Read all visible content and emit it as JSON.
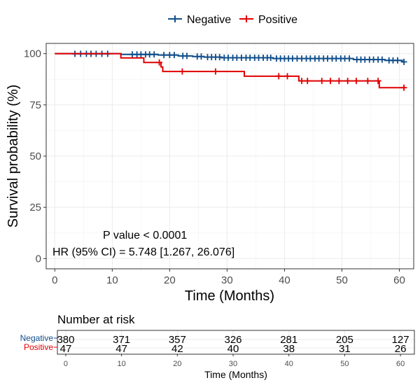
{
  "chart_data": {
    "type": "line",
    "subtype": "kaplan-meier",
    "legend": {
      "placement": "top",
      "entries": [
        {
          "name": "Negative",
          "color": "#0f4d8a"
        },
        {
          "name": "Positive",
          "color": "#e00000"
        }
      ]
    },
    "xlabel": "Time (Months)",
    "ylabel": "Survival probability (%)",
    "xlim": [
      -1.5,
      62.5
    ],
    "ylim": [
      -5,
      105
    ],
    "xticks": [
      0,
      10,
      20,
      30,
      40,
      50,
      60
    ],
    "yticks": [
      0,
      25,
      50,
      75,
      100
    ],
    "grid": true,
    "series": [
      {
        "name": "Negative",
        "color": "#0f4d8a",
        "steps": [
          [
            0,
            100
          ],
          [
            11.5,
            99.6
          ],
          [
            18,
            99.3
          ],
          [
            21.5,
            98.9
          ],
          [
            24,
            98.6
          ],
          [
            26,
            98.3
          ],
          [
            29,
            98.0
          ],
          [
            38,
            97.6
          ],
          [
            52,
            97.1
          ],
          [
            57.5,
            96.7
          ],
          [
            60.5,
            96.0
          ],
          [
            61,
            96.0
          ]
        ],
        "censored": [
          [
            3.5,
            99.9
          ],
          [
            4.5,
            99.9
          ],
          [
            5.5,
            99.9
          ],
          [
            6.3,
            99.9
          ],
          [
            7.2,
            99.9
          ],
          [
            8.2,
            99.9
          ],
          [
            9.2,
            99.9
          ],
          [
            13.5,
            99.6
          ],
          [
            14.3,
            99.6
          ],
          [
            15,
            99.6
          ],
          [
            15.8,
            99.6
          ],
          [
            16.5,
            99.6
          ],
          [
            17.3,
            99.6
          ],
          [
            19,
            99.3
          ],
          [
            20,
            99.3
          ],
          [
            20.8,
            99.3
          ],
          [
            22.3,
            98.9
          ],
          [
            23,
            98.9
          ],
          [
            24.8,
            98.6
          ],
          [
            25.5,
            98.6
          ],
          [
            26.6,
            98.3
          ],
          [
            27.3,
            98.3
          ],
          [
            28,
            98.3
          ],
          [
            28.7,
            98.3
          ],
          [
            29.5,
            98.0
          ],
          [
            30.2,
            98.0
          ],
          [
            31,
            98.0
          ],
          [
            31.7,
            98.0
          ],
          [
            32.5,
            98.0
          ],
          [
            33.3,
            98.0
          ],
          [
            34,
            98.0
          ],
          [
            34.8,
            98.0
          ],
          [
            35.5,
            98.0
          ],
          [
            36.3,
            98.0
          ],
          [
            37,
            98.0
          ],
          [
            37.6,
            98.0
          ],
          [
            38.6,
            97.6
          ],
          [
            39.3,
            97.6
          ],
          [
            40,
            97.6
          ],
          [
            40.7,
            97.6
          ],
          [
            41.4,
            97.6
          ],
          [
            42.2,
            97.6
          ],
          [
            43,
            97.6
          ],
          [
            43.8,
            97.6
          ],
          [
            44.5,
            97.6
          ],
          [
            45.3,
            97.6
          ],
          [
            46,
            97.6
          ],
          [
            46.8,
            97.6
          ],
          [
            47.5,
            97.6
          ],
          [
            48.3,
            97.6
          ],
          [
            49,
            97.6
          ],
          [
            49.8,
            97.6
          ],
          [
            50.5,
            97.6
          ],
          [
            51.3,
            97.6
          ],
          [
            52.6,
            97.1
          ],
          [
            53.3,
            97.1
          ],
          [
            54,
            97.1
          ],
          [
            54.8,
            97.1
          ],
          [
            55.5,
            97.1
          ],
          [
            56.3,
            97.1
          ],
          [
            57,
            97.1
          ],
          [
            58.2,
            96.7
          ],
          [
            58.9,
            96.7
          ],
          [
            59.7,
            96.7
          ],
          [
            60.8,
            96.0
          ]
        ]
      },
      {
        "name": "Positive",
        "color": "#e00000",
        "steps": [
          [
            0,
            100
          ],
          [
            11.5,
            97.9
          ],
          [
            15.5,
            95.7
          ],
          [
            18.5,
            93.5
          ],
          [
            18.8,
            91.3
          ],
          [
            33,
            89.0
          ],
          [
            42.5,
            86.7
          ],
          [
            56.5,
            83.4
          ],
          [
            61,
            83.4
          ]
        ],
        "censored": [
          [
            18.2,
            95.7
          ],
          [
            22.2,
            91.3
          ],
          [
            28,
            91.3
          ],
          [
            39,
            89.0
          ],
          [
            40.5,
            89.0
          ],
          [
            43,
            86.7
          ],
          [
            44,
            86.7
          ],
          [
            46.5,
            86.7
          ],
          [
            48,
            86.7
          ],
          [
            49.5,
            86.7
          ],
          [
            51,
            86.7
          ],
          [
            52.5,
            86.7
          ],
          [
            54.5,
            86.7
          ],
          [
            56.3,
            86.7
          ],
          [
            60.8,
            83.4
          ]
        ]
      }
    ],
    "annotations": [
      "P value < 0.0001",
      "HR (95% CI) = 5.748 [1.267, 26.076]"
    ]
  },
  "risk_table": {
    "title": "Number at risk",
    "xlabel": "Time (Months)",
    "times": [
      0,
      10,
      20,
      30,
      40,
      50,
      60
    ],
    "rows": [
      {
        "name": "Negative",
        "color": "#0f4d8a",
        "counts": [
          380,
          371,
          357,
          326,
          281,
          205,
          127
        ]
      },
      {
        "name": "Positive",
        "color": "#e00000",
        "counts": [
          47,
          47,
          42,
          40,
          38,
          31,
          26
        ]
      }
    ]
  }
}
